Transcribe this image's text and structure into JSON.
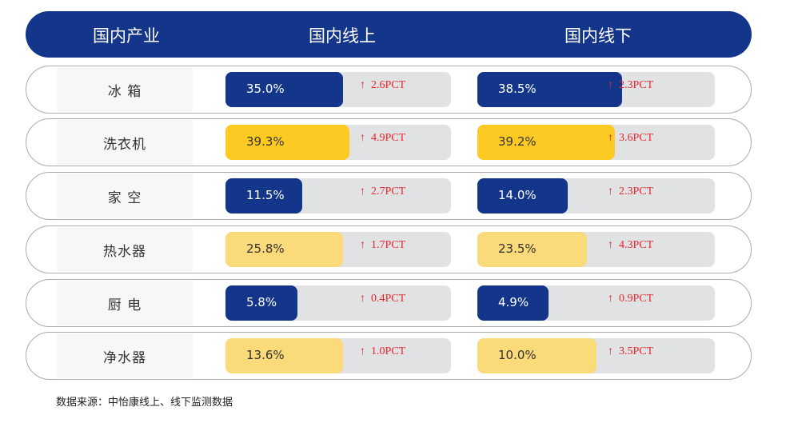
{
  "header": {
    "col0": "国内产业",
    "col1": "国内线上",
    "col2": "国内线下"
  },
  "colors": {
    "navy": "#13368a",
    "yellow": "#fdc923",
    "light_yellow": "#fbda7a",
    "track": "#e1e2e4",
    "up": "#e8262a"
  },
  "arrow": "↑",
  "rows": [
    {
      "label": "冰 箱",
      "online": {
        "value": "35.0%",
        "change": "2.6PCT",
        "fill": 0.52
      },
      "offline": {
        "value": "38.5%",
        "change": "2.3PCT",
        "fill": 0.61
      },
      "color": "navy"
    },
    {
      "label": "洗衣机",
      "online": {
        "value": "39.3%",
        "change": "4.9PCT",
        "fill": 0.55
      },
      "offline": {
        "value": "39.2%",
        "change": "3.6PCT",
        "fill": 0.58
      },
      "color": "yellow"
    },
    {
      "label": "家 空",
      "online": {
        "value": "11.5%",
        "change": "2.7PCT",
        "fill": 0.34
      },
      "offline": {
        "value": "14.0%",
        "change": "2.3PCT",
        "fill": 0.38
      },
      "color": "navy"
    },
    {
      "label": "热水器",
      "online": {
        "value": "25.8%",
        "change": "1.7PCT",
        "fill": 0.52
      },
      "offline": {
        "value": "23.5%",
        "change": "4.3PCT",
        "fill": 0.46
      },
      "color": "light_yellow"
    },
    {
      "label": "厨 电",
      "online": {
        "value": "5.8%",
        "change": "0.4PCT",
        "fill": 0.32
      },
      "offline": {
        "value": "4.9%",
        "change": "0.9PCT",
        "fill": 0.3
      },
      "color": "navy"
    },
    {
      "label": "净水器",
      "online": {
        "value": "13.6%",
        "change": "1.0PCT",
        "fill": 0.52
      },
      "offline": {
        "value": "10.0%",
        "change": "3.5PCT",
        "fill": 0.5
      },
      "color": "light_yellow"
    }
  ],
  "footer": "数据来源：中怡康线上、线下监测数据"
}
